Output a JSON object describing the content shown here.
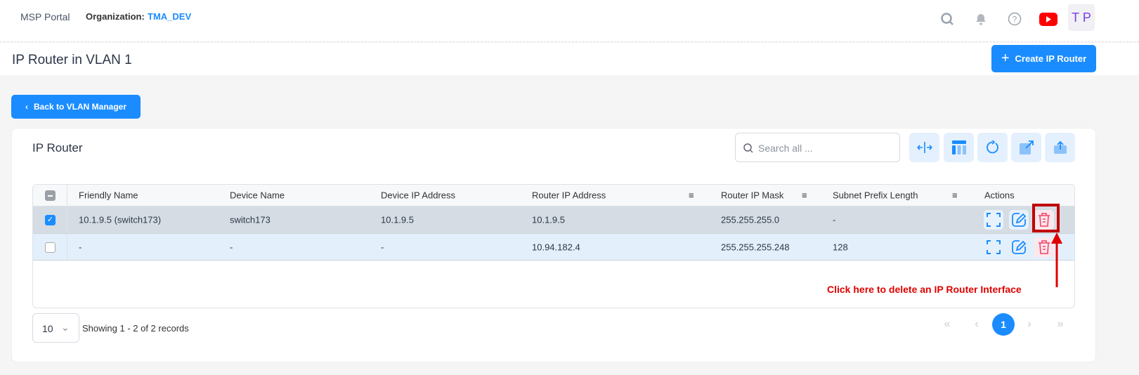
{
  "header": {
    "app_name": "MSP Portal",
    "org_label": "Organization:",
    "org_value": "TMA_DEV",
    "avatar": "T P",
    "icons": [
      "search-icon",
      "bell-icon",
      "help-icon",
      "youtube-icon"
    ]
  },
  "page": {
    "title": "IP Router in VLAN 1",
    "create_button": "Create IP Router",
    "back_button": "Back to VLAN Manager"
  },
  "card": {
    "title": "IP Router",
    "search_placeholder": "Search all ...",
    "toolbar_icons": [
      "resize-columns-icon",
      "columns-icon",
      "refresh-icon",
      "export-icon",
      "upload-icon"
    ]
  },
  "table": {
    "columns": [
      "Friendly Name",
      "Device Name",
      "Device IP Address",
      "Router IP Address",
      "Router IP Mask",
      "Subnet Prefix Length",
      "Actions"
    ],
    "rows": [
      {
        "checked": true,
        "friendly_name": "10.1.9.5 (switch173)",
        "device_name": "switch173",
        "device_ip": "10.1.9.5",
        "router_ip": "10.1.9.5",
        "router_mask": "255.255.255.0",
        "prefix": "-"
      },
      {
        "checked": false,
        "friendly_name": "-",
        "device_name": "-",
        "device_ip": "-",
        "router_ip": "10.94.182.4",
        "router_mask": "255.255.255.248",
        "prefix": "128"
      }
    ]
  },
  "annotation": {
    "text": "Click here to delete an IP Router Interface",
    "color": "#e00000"
  },
  "pagination": {
    "page_size": "10",
    "summary": "Showing 1 - 2 of 2 records",
    "current_page": "1"
  },
  "colors": {
    "accent": "#1a8cff",
    "danger": "#f0436b"
  }
}
